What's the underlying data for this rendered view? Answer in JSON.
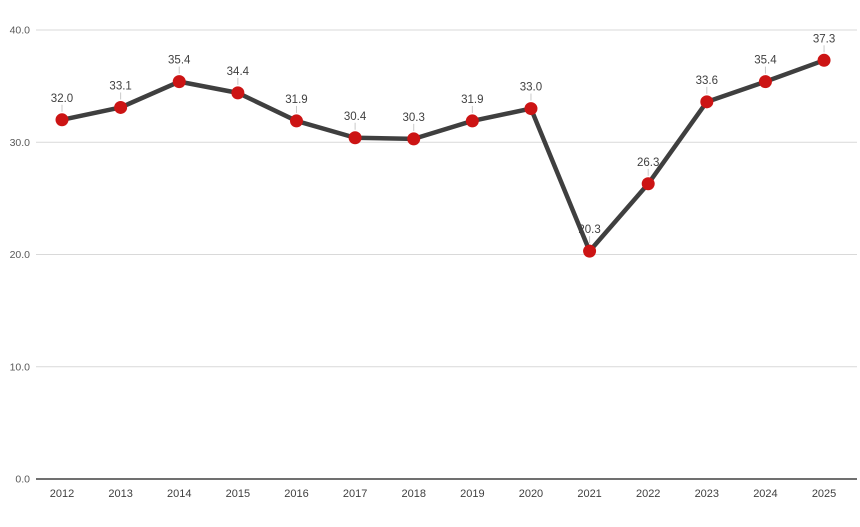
{
  "chart_data": {
    "type": "line",
    "title": "",
    "xlabel": "",
    "ylabel": "",
    "categories": [
      "2012",
      "2013",
      "2014",
      "2015",
      "2016",
      "2017",
      "2018",
      "2019",
      "2020",
      "2021",
      "2022",
      "2023",
      "2024",
      "2025"
    ],
    "series": [
      {
        "name": "values",
        "values": [
          32.0,
          33.1,
          35.4,
          34.4,
          31.9,
          30.4,
          30.3,
          31.9,
          33.0,
          20.3,
          26.3,
          33.6,
          35.4,
          37.3
        ]
      }
    ],
    "data_labels": [
      "32.0",
      "33.1",
      "35.4",
      "34.4",
      "31.9",
      "30.4",
      "30.3",
      "31.9",
      "33.0",
      "20.3",
      "26.3",
      "33.6",
      "35.4",
      "37.3"
    ],
    "ylim": [
      0,
      40
    ],
    "yticks": [
      0,
      10,
      20,
      30,
      40
    ],
    "ytick_labels": [
      "0.0",
      "10.0",
      "20.0",
      "30.0",
      "40.0"
    ],
    "grid": true,
    "legend": false,
    "colors": {
      "line": "#3F3F3F",
      "marker": "#CC1414",
      "gridline": "#D9D9D9",
      "axis_line": "#404040",
      "leader_line": "#C9C9C9",
      "data_label_text": "#404040",
      "xtick_label_text": "#404040",
      "ytick_label_text": "#595959",
      "background": "#FFFFFF"
    }
  }
}
